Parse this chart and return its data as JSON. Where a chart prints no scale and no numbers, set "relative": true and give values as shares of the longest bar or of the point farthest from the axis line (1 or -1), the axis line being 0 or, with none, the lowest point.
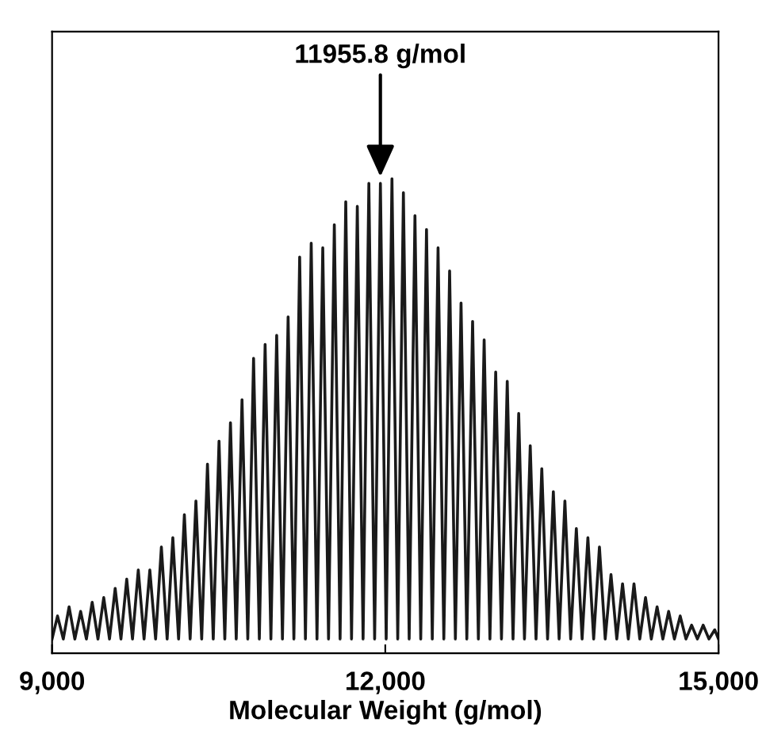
{
  "chart_data": {
    "type": "line",
    "relative": true,
    "xlabel": "Molecular Weight (g/mol)",
    "xlim": [
      9000,
      15000
    ],
    "xticks": [
      {
        "value": 9000,
        "label": "9,000"
      },
      {
        "value": 12000,
        "label": "12,000"
      },
      {
        "value": 15000,
        "label": "15,000"
      }
    ],
    "tick_labels": "x",
    "grid": false,
    "legend": false,
    "marker": "none",
    "line_style": "solid",
    "annotations": [
      {
        "text": "11955.8 g/mol",
        "x": 11955.8,
        "y": 0.99
      }
    ],
    "series": [
      {
        "color": "#1a1a1a",
        "x": [
          9000,
          9049,
          9101,
          9153,
          9205,
          9257,
          9309,
          9361,
          9413,
          9465,
          9517,
          9568,
          9620,
          9672,
          9724,
          9776,
          9828,
          9880,
          9932,
          9984,
          10036,
          10087,
          10139,
          10191,
          10243,
          10295,
          10347,
          10399,
          10451,
          10503,
          10555,
          10606,
          10658,
          10710,
          10762,
          10814,
          10866,
          10918,
          10970,
          11022,
          11074,
          11125,
          11177,
          11229,
          11281,
          11333,
          11385,
          11437,
          11489,
          11541,
          11593,
          11644,
          11696,
          11748,
          11800,
          11852,
          11904,
          11956,
          12008,
          12060,
          12112,
          12163,
          12215,
          12267,
          12319,
          12371,
          12423,
          12475,
          12527,
          12579,
          12631,
          12682,
          12734,
          12786,
          12838,
          12890,
          12942,
          12994,
          13046,
          13098,
          13150,
          13201,
          13253,
          13305,
          13357,
          13409,
          13461,
          13513,
          13565,
          13617,
          13669,
          13720,
          13772,
          13824,
          13876,
          13928,
          13980,
          14032,
          14084,
          14136,
          14188,
          14239,
          14291,
          14343,
          14395,
          14447,
          14499,
          14551,
          14603,
          14655,
          14707,
          14758,
          14810,
          14862,
          14914,
          14966,
          15000
        ],
        "values": [
          0,
          0.05,
          0,
          0.07,
          0,
          0.06,
          0,
          0.08,
          0,
          0.09,
          0,
          0.11,
          0,
          0.13,
          0,
          0.15,
          0,
          0.15,
          0,
          0.2,
          0,
          0.22,
          0,
          0.27,
          0,
          0.3,
          0,
          0.38,
          0,
          0.43,
          0,
          0.47,
          0,
          0.52,
          0,
          0.61,
          0,
          0.64,
          0,
          0.66,
          0,
          0.7,
          0,
          0.83,
          0,
          0.86,
          0,
          0.85,
          0,
          0.9,
          0,
          0.95,
          0,
          0.94,
          0,
          0.99,
          0,
          0.99,
          0,
          1.0,
          0,
          0.97,
          0,
          0.92,
          0,
          0.89,
          0,
          0.85,
          0,
          0.8,
          0,
          0.73,
          0,
          0.69,
          0,
          0.65,
          0,
          0.58,
          0,
          0.56,
          0,
          0.49,
          0,
          0.42,
          0,
          0.37,
          0,
          0.32,
          0,
          0.3,
          0,
          0.24,
          0,
          0.22,
          0,
          0.2,
          0,
          0.14,
          0,
          0.12,
          0,
          0.12,
          0,
          0.09,
          0,
          0.07,
          0,
          0.06,
          0,
          0.05,
          0,
          0.03,
          0,
          0.03,
          0,
          0.02,
          0
        ]
      }
    ]
  }
}
